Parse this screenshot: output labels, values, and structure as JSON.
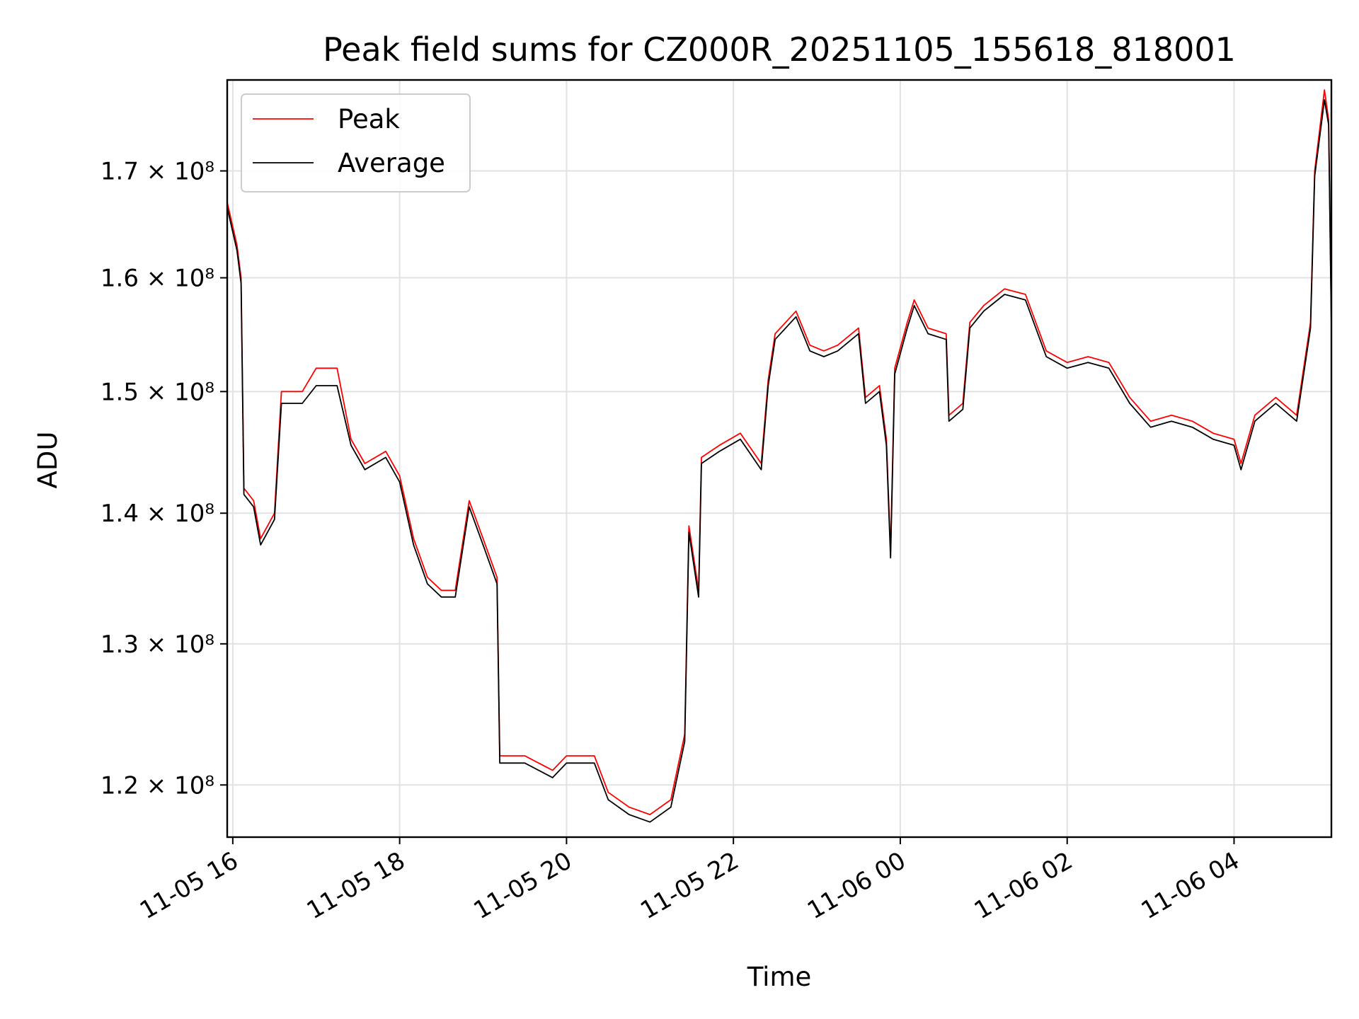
{
  "chart_data": {
    "type": "line",
    "title": "Peak field sums for CZ000R_20251105_155618_818001",
    "xlabel": "Time",
    "ylabel": "ADU",
    "x_range": [
      "2025-11-05 15:56",
      "2025-11-06 05:10"
    ],
    "ylim": [
      116500000,
      179000000
    ],
    "y_scale": "log",
    "grid": true,
    "legend_position": "top-left",
    "x_ticks": [
      {
        "time": "2025-11-05 16:00",
        "label": "11-05 16"
      },
      {
        "time": "2025-11-05 18:00",
        "label": "11-05 18"
      },
      {
        "time": "2025-11-05 20:00",
        "label": "11-05 20"
      },
      {
        "time": "2025-11-05 22:00",
        "label": "11-05 22"
      },
      {
        "time": "2025-11-06 00:00",
        "label": "11-06 00"
      },
      {
        "time": "2025-11-06 02:00",
        "label": "11-06 02"
      },
      {
        "time": "2025-11-06 04:00",
        "label": "11-06 04"
      }
    ],
    "y_ticks": [
      {
        "value": 120000000,
        "label": "1.2 × 10⁸"
      },
      {
        "value": 130000000,
        "label": "1.3 × 10⁸"
      },
      {
        "value": 140000000,
        "label": "1.4 × 10⁸"
      },
      {
        "value": 150000000,
        "label": "1.5 × 10⁸"
      },
      {
        "value": 160000000,
        "label": "1.6 × 10⁸"
      },
      {
        "value": 170000000,
        "label": "1.7 × 10⁸"
      }
    ],
    "series": [
      {
        "name": "Peak",
        "color": "#ff0000",
        "points": [
          [
            "2025-11-05 15:56",
            167000000
          ],
          [
            "2025-11-05 16:03",
            163000000
          ],
          [
            "2025-11-05 16:06",
            160000000
          ],
          [
            "2025-11-05 16:08",
            142000000
          ],
          [
            "2025-11-05 16:15",
            141000000
          ],
          [
            "2025-11-05 16:20",
            138000000
          ],
          [
            "2025-11-05 16:30",
            140000000
          ],
          [
            "2025-11-05 16:35",
            150000000
          ],
          [
            "2025-11-05 16:50",
            150000000
          ],
          [
            "2025-11-05 17:00",
            152000000
          ],
          [
            "2025-11-05 17:15",
            152000000
          ],
          [
            "2025-11-05 17:25",
            146000000
          ],
          [
            "2025-11-05 17:35",
            144000000
          ],
          [
            "2025-11-05 17:50",
            145000000
          ],
          [
            "2025-11-05 18:00",
            143000000
          ],
          [
            "2025-11-05 18:10",
            138000000
          ],
          [
            "2025-11-05 18:20",
            135000000
          ],
          [
            "2025-11-05 18:30",
            134000000
          ],
          [
            "2025-11-05 18:40",
            134000000
          ],
          [
            "2025-11-05 18:50",
            141000000
          ],
          [
            "2025-11-05 19:00",
            138000000
          ],
          [
            "2025-11-05 19:10",
            135000000
          ],
          [
            "2025-11-05 19:12",
            122000000
          ],
          [
            "2025-11-05 19:30",
            122000000
          ],
          [
            "2025-11-05 19:50",
            121000000
          ],
          [
            "2025-11-05 20:00",
            122000000
          ],
          [
            "2025-11-05 20:20",
            122000000
          ],
          [
            "2025-11-05 20:30",
            119500000
          ],
          [
            "2025-11-05 20:45",
            118500000
          ],
          [
            "2025-11-05 21:00",
            118000000
          ],
          [
            "2025-11-05 21:15",
            119000000
          ],
          [
            "2025-11-05 21:25",
            123500000
          ],
          [
            "2025-11-05 21:28",
            139000000
          ],
          [
            "2025-11-05 21:35",
            134000000
          ],
          [
            "2025-11-05 21:37",
            144500000
          ],
          [
            "2025-11-05 21:50",
            145500000
          ],
          [
            "2025-11-05 22:05",
            146500000
          ],
          [
            "2025-11-05 22:20",
            144000000
          ],
          [
            "2025-11-05 22:25",
            151000000
          ],
          [
            "2025-11-05 22:30",
            155000000
          ],
          [
            "2025-11-05 22:45",
            157000000
          ],
          [
            "2025-11-05 22:55",
            154000000
          ],
          [
            "2025-11-05 23:05",
            153500000
          ],
          [
            "2025-11-05 23:15",
            154000000
          ],
          [
            "2025-11-05 23:30",
            155500000
          ],
          [
            "2025-11-05 23:35",
            149500000
          ],
          [
            "2025-11-05 23:45",
            150500000
          ],
          [
            "2025-11-05 23:50",
            146000000
          ],
          [
            "2025-11-05 23:53",
            137000000
          ],
          [
            "2025-11-05 23:56",
            152000000
          ],
          [
            "2025-11-06 00:05",
            156000000
          ],
          [
            "2025-11-06 00:10",
            158000000
          ],
          [
            "2025-11-06 00:20",
            155500000
          ],
          [
            "2025-11-06 00:33",
            155000000
          ],
          [
            "2025-11-06 00:35",
            148000000
          ],
          [
            "2025-11-06 00:45",
            149000000
          ],
          [
            "2025-11-06 00:50",
            156000000
          ],
          [
            "2025-11-06 01:00",
            157500000
          ],
          [
            "2025-11-06 01:15",
            159000000
          ],
          [
            "2025-11-06 01:30",
            158500000
          ],
          [
            "2025-11-06 01:45",
            153500000
          ],
          [
            "2025-11-06 02:00",
            152500000
          ],
          [
            "2025-11-06 02:15",
            153000000
          ],
          [
            "2025-11-06 02:30",
            152500000
          ],
          [
            "2025-11-06 02:45",
            149500000
          ],
          [
            "2025-11-06 03:00",
            147500000
          ],
          [
            "2025-11-06 03:15",
            148000000
          ],
          [
            "2025-11-06 03:30",
            147500000
          ],
          [
            "2025-11-06 03:45",
            146500000
          ],
          [
            "2025-11-06 04:00",
            146000000
          ],
          [
            "2025-11-06 04:05",
            144000000
          ],
          [
            "2025-11-06 04:15",
            148000000
          ],
          [
            "2025-11-06 04:30",
            149500000
          ],
          [
            "2025-11-06 04:45",
            148000000
          ],
          [
            "2025-11-06 04:55",
            156000000
          ],
          [
            "2025-11-06 04:58",
            170000000
          ],
          [
            "2025-11-06 05:05",
            178000000
          ],
          [
            "2025-11-06 05:08",
            175000000
          ],
          [
            "2025-11-06 05:10",
            156000000
          ]
        ]
      },
      {
        "name": "Average",
        "color": "#000000",
        "points": [
          [
            "2025-11-05 15:56",
            166500000
          ],
          [
            "2025-11-05 16:03",
            162500000
          ],
          [
            "2025-11-05 16:06",
            159500000
          ],
          [
            "2025-11-05 16:08",
            141500000
          ],
          [
            "2025-11-05 16:15",
            140500000
          ],
          [
            "2025-11-05 16:20",
            137500000
          ],
          [
            "2025-11-05 16:30",
            139500000
          ],
          [
            "2025-11-05 16:35",
            149000000
          ],
          [
            "2025-11-05 16:50",
            149000000
          ],
          [
            "2025-11-05 17:00",
            150500000
          ],
          [
            "2025-11-05 17:15",
            150500000
          ],
          [
            "2025-11-05 17:25",
            145500000
          ],
          [
            "2025-11-05 17:35",
            143500000
          ],
          [
            "2025-11-05 17:50",
            144500000
          ],
          [
            "2025-11-05 18:00",
            142500000
          ],
          [
            "2025-11-05 18:10",
            137500000
          ],
          [
            "2025-11-05 18:20",
            134500000
          ],
          [
            "2025-11-05 18:30",
            133500000
          ],
          [
            "2025-11-05 18:40",
            133500000
          ],
          [
            "2025-11-05 18:50",
            140500000
          ],
          [
            "2025-11-05 19:00",
            137500000
          ],
          [
            "2025-11-05 19:10",
            134500000
          ],
          [
            "2025-11-05 19:12",
            121500000
          ],
          [
            "2025-11-05 19:30",
            121500000
          ],
          [
            "2025-11-05 19:50",
            120500000
          ],
          [
            "2025-11-05 20:00",
            121500000
          ],
          [
            "2025-11-05 20:20",
            121500000
          ],
          [
            "2025-11-05 20:30",
            119000000
          ],
          [
            "2025-11-05 20:45",
            118000000
          ],
          [
            "2025-11-05 21:00",
            117500000
          ],
          [
            "2025-11-05 21:15",
            118500000
          ],
          [
            "2025-11-05 21:25",
            123000000
          ],
          [
            "2025-11-05 21:28",
            138500000
          ],
          [
            "2025-11-05 21:35",
            133500000
          ],
          [
            "2025-11-05 21:37",
            144000000
          ],
          [
            "2025-11-05 21:50",
            145000000
          ],
          [
            "2025-11-05 22:05",
            146000000
          ],
          [
            "2025-11-05 22:20",
            143500000
          ],
          [
            "2025-11-05 22:25",
            150500000
          ],
          [
            "2025-11-05 22:30",
            154500000
          ],
          [
            "2025-11-05 22:45",
            156500000
          ],
          [
            "2025-11-05 22:55",
            153500000
          ],
          [
            "2025-11-05 23:05",
            153000000
          ],
          [
            "2025-11-05 23:15",
            153500000
          ],
          [
            "2025-11-05 23:30",
            155000000
          ],
          [
            "2025-11-05 23:35",
            149000000
          ],
          [
            "2025-11-05 23:45",
            150000000
          ],
          [
            "2025-11-05 23:50",
            145500000
          ],
          [
            "2025-11-05 23:53",
            136500000
          ],
          [
            "2025-11-05 23:56",
            151500000
          ],
          [
            "2025-11-06 00:05",
            155500000
          ],
          [
            "2025-11-06 00:10",
            157500000
          ],
          [
            "2025-11-06 00:20",
            155000000
          ],
          [
            "2025-11-06 00:33",
            154500000
          ],
          [
            "2025-11-06 00:35",
            147500000
          ],
          [
            "2025-11-06 00:45",
            148500000
          ],
          [
            "2025-11-06 00:50",
            155500000
          ],
          [
            "2025-11-06 01:00",
            157000000
          ],
          [
            "2025-11-06 01:15",
            158500000
          ],
          [
            "2025-11-06 01:30",
            158000000
          ],
          [
            "2025-11-06 01:45",
            153000000
          ],
          [
            "2025-11-06 02:00",
            152000000
          ],
          [
            "2025-11-06 02:15",
            152500000
          ],
          [
            "2025-11-06 02:30",
            152000000
          ],
          [
            "2025-11-06 02:45",
            149000000
          ],
          [
            "2025-11-06 03:00",
            147000000
          ],
          [
            "2025-11-06 03:15",
            147500000
          ],
          [
            "2025-11-06 03:30",
            147000000
          ],
          [
            "2025-11-06 03:45",
            146000000
          ],
          [
            "2025-11-06 04:00",
            145500000
          ],
          [
            "2025-11-06 04:05",
            143500000
          ],
          [
            "2025-11-06 04:15",
            147500000
          ],
          [
            "2025-11-06 04:30",
            149000000
          ],
          [
            "2025-11-06 04:45",
            147500000
          ],
          [
            "2025-11-06 04:55",
            155500000
          ],
          [
            "2025-11-06 04:58",
            169500000
          ],
          [
            "2025-11-06 05:05",
            177000000
          ],
          [
            "2025-11-06 05:08",
            174500000
          ],
          [
            "2025-11-06 05:10",
            155500000
          ]
        ]
      }
    ]
  }
}
